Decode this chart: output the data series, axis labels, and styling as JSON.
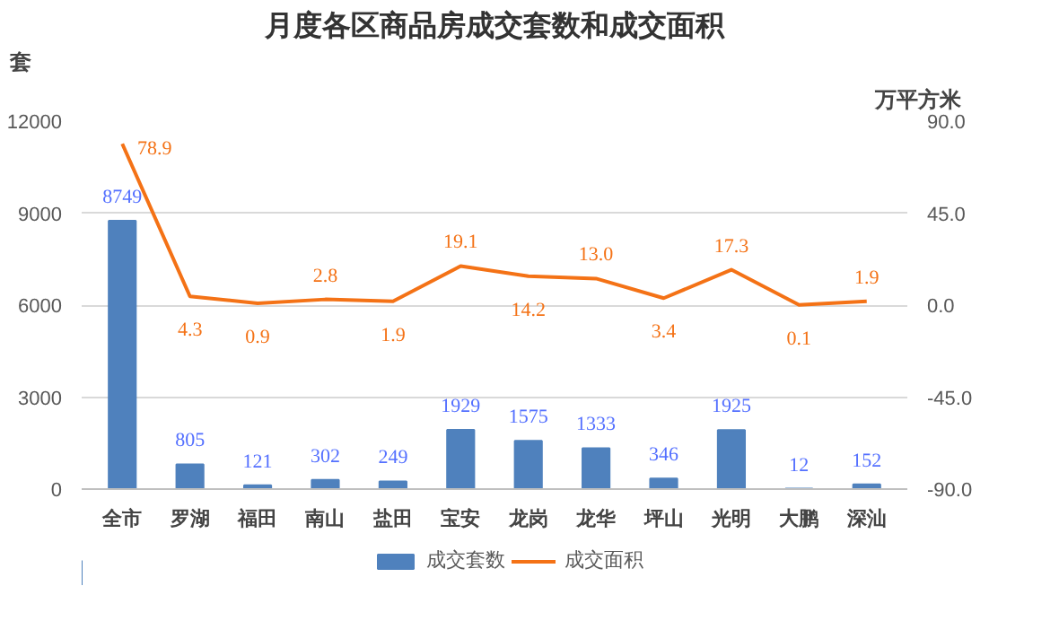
{
  "chart_data": {
    "type": "bar",
    "title": "月度各区商品房成交套数和成交面积",
    "ylabel": "套",
    "y2label": "万平方米",
    "categories": [
      "全市",
      "罗湖",
      "福田",
      "南山",
      "盐田",
      "宝安",
      "龙岗",
      "龙华",
      "坪山",
      "光明",
      "大鹏",
      "深汕"
    ],
    "series": [
      {
        "name": "成交套数",
        "type": "bar",
        "color": "#4f81bd",
        "values": [
          8749,
          805,
          121,
          302,
          249,
          1929,
          1575,
          1333,
          346,
          1925,
          12,
          152
        ]
      },
      {
        "name": "成交面积",
        "type": "line",
        "axis": "y2",
        "color": "#f47216",
        "values": [
          78.9,
          4.3,
          0.9,
          2.8,
          1.9,
          19.1,
          14.2,
          13.0,
          3.4,
          17.3,
          0.1,
          1.9
        ],
        "value_labels": [
          "78.9",
          "4.3",
          "0.9",
          "2.8",
          "1.9",
          "19.1",
          "14.2",
          "13.0",
          "3.4",
          "17.3",
          "0.1",
          "1.9"
        ]
      }
    ],
    "ylim": [
      0,
      12000
    ],
    "yticks": [
      0,
      3000,
      6000,
      9000,
      12000
    ],
    "y2lim": [
      -90,
      90
    ],
    "y2ticks": [
      {
        "value": -90,
        "label": "-90.0"
      },
      {
        "value": -45,
        "label": "-45.0"
      },
      {
        "value": 0,
        "label": "0.0"
      },
      {
        "value": 45,
        "label": "45.0"
      },
      {
        "value": 90,
        "label": "90.0"
      }
    ],
    "grid": "y",
    "legend": "bottom",
    "data_labels": true,
    "marker": "none",
    "line_style": "solid"
  }
}
